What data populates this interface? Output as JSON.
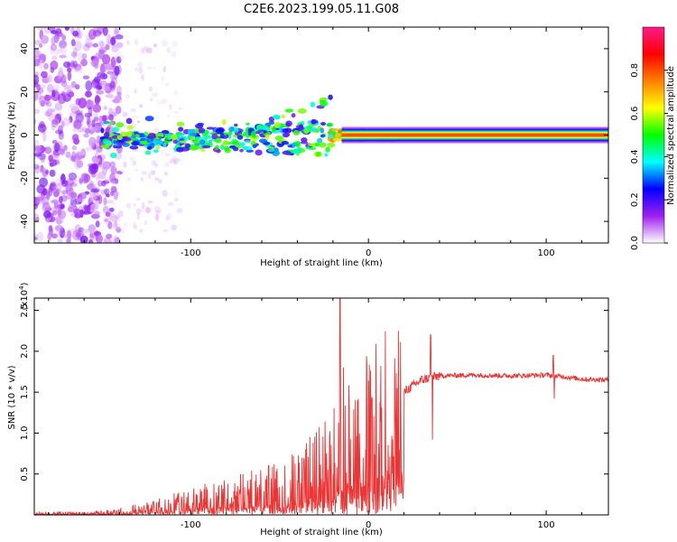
{
  "title": "C2E6.2023.199.05.11.G08",
  "chart_data": [
    {
      "type": "heatmap",
      "name": "spectrogram",
      "xlabel": "Height of straight line (km)",
      "ylabel": "Frequency (Hz)",
      "xlim": [
        -188,
        135
      ],
      "ylim": [
        -50,
        50
      ],
      "xticks": [
        -100,
        0,
        100
      ],
      "xtick_labels": [
        "-100",
        "0",
        "100"
      ],
      "yticks": [
        -40,
        -20,
        0,
        20,
        40
      ],
      "ytick_labels": [
        "-40",
        "-20",
        "0",
        "20",
        "40"
      ],
      "colorbar": {
        "label": "Normalized spectral amplitude",
        "range": [
          0,
          1
        ],
        "ticks": [
          0.0,
          0.2,
          0.4,
          0.6,
          0.8
        ],
        "tick_labels": [
          "0.0",
          "0.2",
          "0.4",
          "0.6",
          "0.8"
        ],
        "colors": [
          "#ffffff",
          "#a020f0",
          "#0000ff",
          "#00ffff",
          "#00ff00",
          "#ffff00",
          "#ff8000",
          "#ff0000",
          "#ff1a8c"
        ]
      },
      "features": {
        "noise_region": [
          -188,
          -140
        ],
        "diverging_branches_region": [
          -150,
          -20
        ],
        "constant_line_region": [
          -20,
          135
        ],
        "constant_line_frequency": 0
      }
    },
    {
      "type": "line",
      "name": "snr",
      "xlabel": "Height of straight line (km)",
      "ylabel": "SNR (10 * v/v)",
      "scale_label": "(x10",
      "scale_exp": "4",
      "scale_close": ")",
      "xlim": [
        -188,
        135
      ],
      "ylim": [
        0,
        2.65
      ],
      "xticks": [
        -100,
        0,
        100
      ],
      "xtick_labels": [
        "-100",
        "0",
        "100"
      ],
      "yticks": [
        0.5,
        1.0,
        1.5,
        2.0,
        2.5
      ],
      "ytick_labels": [
        "0.5",
        "1.0",
        "1.5",
        "2.0",
        "2.5"
      ],
      "color": "#ee3333",
      "trend_x": [
        -188,
        -160,
        -140,
        -120,
        -100,
        -80,
        -60,
        -40,
        -30,
        -20,
        -10,
        0,
        10,
        20,
        25,
        30,
        35,
        40,
        60,
        80,
        100,
        110,
        120,
        135
      ],
      "trend_y": [
        0.02,
        0.02,
        0.04,
        0.1,
        0.18,
        0.25,
        0.3,
        0.42,
        0.55,
        0.7,
        0.9,
        1.05,
        1.25,
        1.5,
        1.58,
        1.65,
        1.68,
        1.7,
        1.71,
        1.7,
        1.71,
        1.69,
        1.66,
        1.65
      ],
      "spikes": [
        {
          "x": -16,
          "y": 2.65
        },
        {
          "x": -14,
          "y": 1.8
        },
        {
          "x": 35,
          "y": 2.2
        },
        {
          "x": 36,
          "y": 0.92
        },
        {
          "x": 104,
          "y": 1.95
        },
        {
          "x": 104.5,
          "y": 1.42
        }
      ]
    }
  ]
}
